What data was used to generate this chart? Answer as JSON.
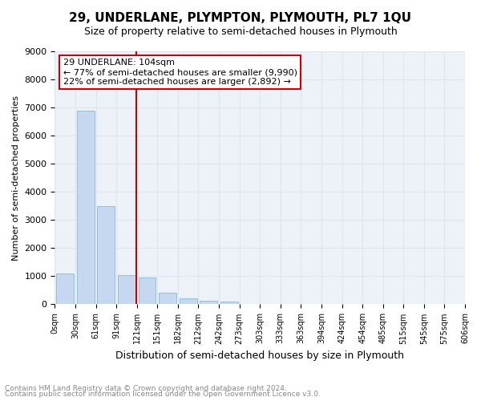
{
  "title": "29, UNDERLANE, PLYMPTON, PLYMOUTH, PL7 1QU",
  "subtitle": "Size of property relative to semi-detached houses in Plymouth",
  "xlabel": "Distribution of semi-detached houses by size in Plymouth",
  "ylabel": "Number of semi-detached properties",
  "bin_labels": [
    "0sqm",
    "30sqm",
    "61sqm",
    "91sqm",
    "121sqm",
    "151sqm",
    "182sqm",
    "212sqm",
    "242sqm",
    "273sqm",
    "303sqm",
    "333sqm",
    "363sqm",
    "394sqm",
    "424sqm",
    "454sqm",
    "485sqm",
    "515sqm",
    "545sqm",
    "575sqm",
    "606sqm"
  ],
  "bar_values": [
    1100,
    6900,
    3500,
    1050,
    950,
    400,
    200,
    120,
    100,
    0,
    0,
    0,
    0,
    0,
    0,
    0,
    0,
    0,
    0,
    0
  ],
  "bar_color": "#c5d8f0",
  "bar_edge_color": "#7bafd4",
  "grid_color": "#dde6f0",
  "background_color": "#edf2f9",
  "vline_x": 3.467,
  "vline_color": "#cc0000",
  "annotation_title": "29 UNDERLANE: 104sqm",
  "annotation_line1": "← 77% of semi-detached houses are smaller (9,990)",
  "annotation_line2": "22% of semi-detached houses are larger (2,892) →",
  "annotation_box_color": "#ffffff",
  "annotation_border_color": "#cc0000",
  "ylim": [
    0,
    9000
  ],
  "yticks": [
    0,
    1000,
    2000,
    3000,
    4000,
    5000,
    6000,
    7000,
    8000,
    9000
  ],
  "footnote1": "Contains HM Land Registry data © Crown copyright and database right 2024.",
  "footnote2": "Contains public sector information licensed under the Open Government Licence v3.0."
}
